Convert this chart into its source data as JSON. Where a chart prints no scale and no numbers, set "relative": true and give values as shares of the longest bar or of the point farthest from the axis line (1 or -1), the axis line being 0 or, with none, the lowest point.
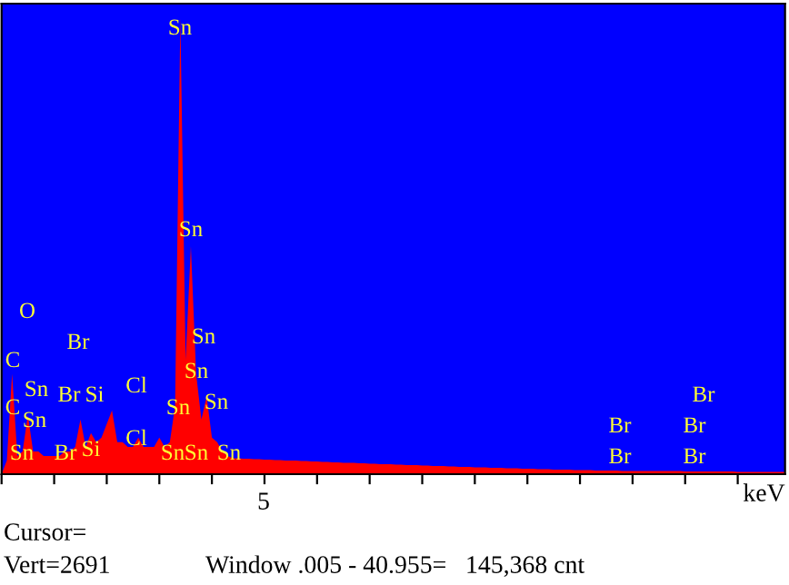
{
  "chart_data": {
    "type": "area",
    "relative": true,
    "xlabel": "keV",
    "categories": [
      null,
      null,
      null,
      null,
      null,
      null,
      null,
      null,
      null,
      null,
      null,
      null,
      null,
      null,
      null,
      null,
      null,
      null,
      null,
      null,
      null,
      null,
      null,
      null,
      null,
      null,
      null,
      null,
      null,
      null,
      null,
      null,
      null,
      null,
      null,
      null,
      null,
      null,
      null,
      null,
      null,
      null,
      null,
      null,
      null,
      null,
      null,
      null,
      null,
      null,
      null,
      null,
      null,
      null,
      null,
      null,
      null,
      null,
      null,
      null,
      null,
      null,
      null,
      null,
      null,
      null,
      null,
      null,
      null,
      null,
      null,
      null,
      null,
      null,
      null,
      null,
      null,
      null,
      null,
      null,
      null,
      null,
      null,
      null,
      null,
      null,
      null,
      null,
      null,
      null,
      null,
      null,
      null,
      null,
      null,
      null,
      null,
      null,
      null,
      null,
      null,
      null,
      null,
      null,
      null,
      null,
      null,
      null,
      null,
      null,
      null,
      null,
      null,
      null,
      null,
      null,
      null,
      null,
      null,
      null,
      null,
      null,
      null,
      null,
      null,
      null,
      null,
      null,
      null,
      null,
      null,
      null,
      null,
      null,
      null,
      null,
      null,
      null,
      null,
      null,
      null,
      null,
      null,
      null,
      null,
      null,
      null,
      null,
      null,
      null
    ],
    "series": [
      {
        "color": "#ff0000",
        "values": [
          0.0,
          0.03,
          0.22,
          0.04,
          0.05,
          0.13,
          0.05,
          0.05,
          0.04,
          0.04,
          0.04,
          0.04,
          0.05,
          0.05,
          0.06,
          0.12,
          0.06,
          0.09,
          0.07,
          0.08,
          0.11,
          0.14,
          0.07,
          0.07,
          0.06,
          0.06,
          0.08,
          0.06,
          0.06,
          0.06,
          0.08,
          0.06,
          0.07,
          0.15,
          1.0,
          0.25,
          0.5,
          0.22,
          0.12,
          0.17,
          0.08,
          0.07,
          0.05,
          0.04,
          0.035,
          0.035,
          0.034,
          0.034,
          0.033,
          0.033,
          0.032,
          0.032,
          0.031,
          0.031,
          0.03,
          0.03,
          0.03,
          0.029,
          0.029,
          0.028,
          0.028,
          0.027,
          0.027,
          0.026,
          0.026,
          0.025,
          0.025,
          0.025,
          0.024,
          0.024,
          0.023,
          0.023,
          0.022,
          0.022,
          0.022,
          0.021,
          0.021,
          0.02,
          0.02,
          0.02,
          0.019,
          0.019,
          0.018,
          0.018,
          0.018,
          0.017,
          0.017,
          0.016,
          0.016,
          0.016,
          0.015,
          0.015,
          0.015,
          0.014,
          0.014,
          0.014,
          0.013,
          0.013,
          0.013,
          0.012,
          0.012,
          0.012,
          0.011,
          0.011,
          0.011,
          0.01,
          0.01,
          0.01,
          0.01,
          0.009,
          0.009,
          0.009,
          0.009,
          0.008,
          0.008,
          0.008,
          0.008,
          0.008,
          0.007,
          0.007,
          0.007,
          0.007,
          0.007,
          0.007,
          0.007,
          0.007,
          0.007,
          0.007,
          0.007,
          0.007,
          0.006,
          0.006,
          0.006,
          0.006,
          0.006,
          0.006,
          0.006,
          0.006,
          0.006,
          0.006,
          0.005,
          0.005,
          0.005,
          0.005,
          0.005,
          0.005,
          0.005,
          0.005,
          0.005,
          0.005
        ]
      }
    ],
    "grid": false,
    "legend": false,
    "annotations": [
      "Sn",
      "Sn",
      "Sn",
      "Sn",
      "Sn",
      "Sn",
      "Sn",
      "Sn",
      "Sn",
      "O",
      "Br",
      "C",
      "C",
      "Sn",
      "Sn",
      "Sn",
      "Br",
      "Si",
      "Cl",
      "Cl",
      "Br",
      "Si",
      "Br",
      "Br",
      "Br",
      "Br",
      "Br",
      "5",
      "Cursor=",
      "Vert=2691",
      "Window .005 - 40.955=",
      "145,368 cnt"
    ]
  }
}
